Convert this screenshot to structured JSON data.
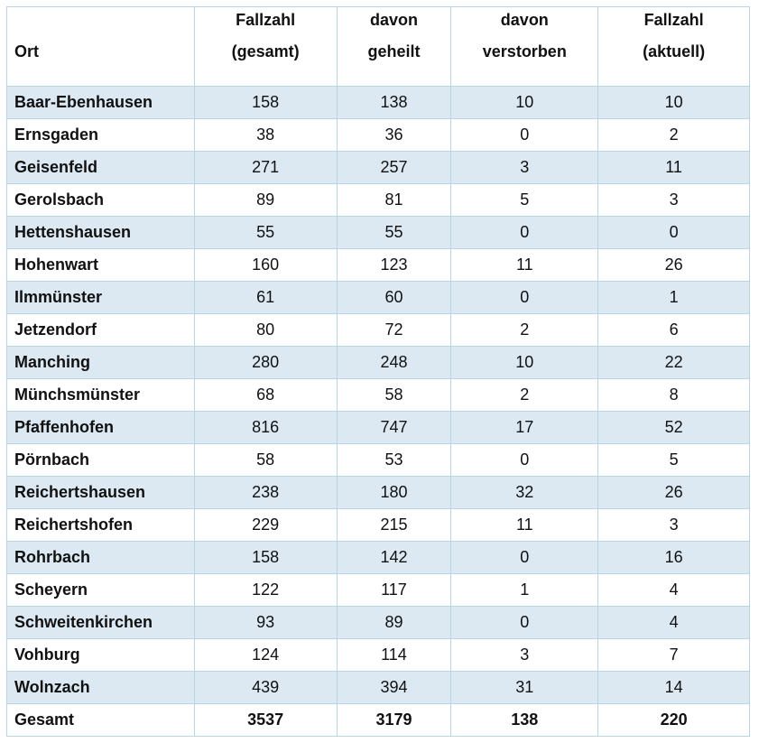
{
  "table": {
    "header": [
      [
        "Ort"
      ],
      [
        "Fallzahl",
        "(gesamt)"
      ],
      [
        "davon",
        "geheilt"
      ],
      [
        "davon",
        "verstorben"
      ],
      [
        "Fallzahl",
        "(aktuell)"
      ]
    ],
    "rows": [
      [
        "Baar-Ebenhausen",
        158,
        138,
        10,
        10
      ],
      [
        "Ernsgaden",
        38,
        36,
        0,
        2
      ],
      [
        "Geisenfeld",
        271,
        257,
        3,
        11
      ],
      [
        "Gerolsbach",
        89,
        81,
        5,
        3
      ],
      [
        "Hettenshausen",
        55,
        55,
        0,
        0
      ],
      [
        "Hohenwart",
        160,
        123,
        11,
        26
      ],
      [
        "Ilmmünster",
        61,
        60,
        0,
        1
      ],
      [
        "Jetzendorf",
        80,
        72,
        2,
        6
      ],
      [
        "Manching",
        280,
        248,
        10,
        22
      ],
      [
        "Münchsmünster",
        68,
        58,
        2,
        8
      ],
      [
        "Pfaffenhofen",
        816,
        747,
        17,
        52
      ],
      [
        "Pörnbach",
        58,
        53,
        0,
        5
      ],
      [
        "Reichertshausen",
        238,
        180,
        32,
        26
      ],
      [
        "Reichertshofen",
        229,
        215,
        11,
        3
      ],
      [
        "Rohrbach",
        158,
        142,
        0,
        16
      ],
      [
        "Scheyern",
        122,
        117,
        1,
        4
      ],
      [
        "Schweitenkirchen",
        93,
        89,
        0,
        4
      ],
      [
        "Vohburg",
        124,
        114,
        3,
        7
      ],
      [
        "Wolnzach",
        439,
        394,
        31,
        14
      ]
    ],
    "total": [
      "Gesamt",
      3537,
      3179,
      138,
      220
    ]
  }
}
